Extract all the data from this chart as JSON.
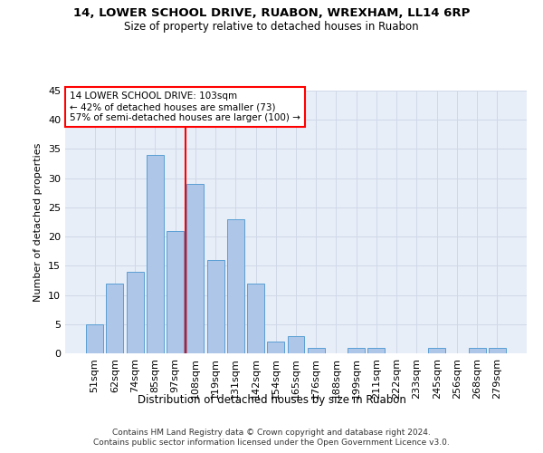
{
  "title1": "14, LOWER SCHOOL DRIVE, RUABON, WREXHAM, LL14 6RP",
  "title2": "Size of property relative to detached houses in Ruabon",
  "xlabel": "Distribution of detached houses by size in Ruabon",
  "ylabel": "Number of detached properties",
  "categories": [
    "51sqm",
    "62sqm",
    "74sqm",
    "85sqm",
    "97sqm",
    "108sqm",
    "119sqm",
    "131sqm",
    "142sqm",
    "154sqm",
    "165sqm",
    "176sqm",
    "188sqm",
    "199sqm",
    "211sqm",
    "222sqm",
    "233sqm",
    "245sqm",
    "256sqm",
    "268sqm",
    "279sqm"
  ],
  "values": [
    5,
    12,
    14,
    34,
    21,
    29,
    16,
    23,
    12,
    2,
    3,
    1,
    0,
    1,
    1,
    0,
    0,
    1,
    0,
    1,
    1
  ],
  "bar_color": "#aec6e8",
  "bar_edge_color": "#5a9fd4",
  "property_line_x": 4.5,
  "annotation_line1": "14 LOWER SCHOOL DRIVE: 103sqm",
  "annotation_line2": "← 42% of detached houses are smaller (73)",
  "annotation_line3": "57% of semi-detached houses are larger (100) →",
  "annotation_box_color": "white",
  "annotation_box_edge": "red",
  "red_line_color": "red",
  "ylim": [
    0,
    45
  ],
  "yticks": [
    0,
    5,
    10,
    15,
    20,
    25,
    30,
    35,
    40,
    45
  ],
  "footer1": "Contains HM Land Registry data © Crown copyright and database right 2024.",
  "footer2": "Contains public sector information licensed under the Open Government Licence v3.0.",
  "grid_color": "#d0d8e8",
  "background_color": "#e8eef8",
  "title1_fontsize": 9.5,
  "title2_fontsize": 8.5
}
